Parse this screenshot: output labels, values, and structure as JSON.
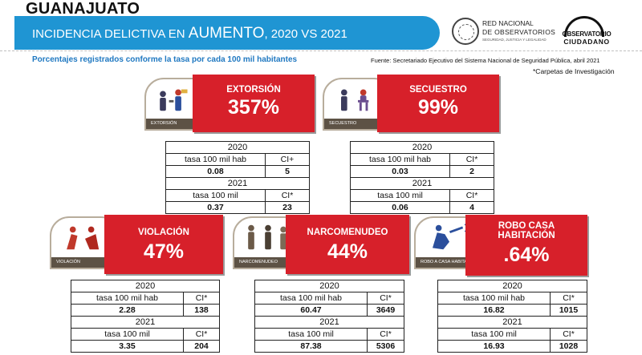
{
  "header": {
    "state": "GUANAJUATO",
    "banner_prefix": "INCIDENCIA DELICTIVA EN ",
    "banner_big": "AUMENTO",
    "banner_suffix": ", 2020 VS 2021",
    "banner_color": "#1f95d3"
  },
  "logos": {
    "red_line1": "RED NACIONAL",
    "red_line2": "DE OBSERVATORIOS",
    "red_line3": "SEGURIDAD, JUSTICIA Y LEGALIDAD",
    "obs_line1": "OBSERVATORIO",
    "obs_line2": "CIUDADANO"
  },
  "subtitle": "Porcentajes registrados conforme la tasa por cada 100 mil habitantes",
  "source": "Fuente: Secretariado Ejecutivo del Sistema Nacional de Seguridad Pública, abril 2021",
  "note": "*Carpetas de Investigación",
  "accent_red": "#d7202a",
  "crimes": [
    {
      "title": "EXTORSIÓN",
      "title2": "",
      "percent": "357%",
      "icon_label": "EXTORSIÓN",
      "icon": "extortion-icon",
      "y2020": "2020",
      "h2020_rate": "tasa 100 mil hab",
      "h2020_ci": "CI+",
      "v2020_rate": "0.08",
      "v2020_ci": "5",
      "y2021": "2021",
      "h2021_rate": "tasa 100 mil",
      "h2021_ci": "CI*",
      "v2021_rate": "0.37",
      "v2021_ci": "23"
    },
    {
      "title": "SECUESTRO",
      "title2": "",
      "percent": "99%",
      "icon_label": "SECUESTRO",
      "icon": "kidnapping-icon",
      "y2020": "2020",
      "h2020_rate": "tasa 100 mil hab",
      "h2020_ci": "CI*",
      "v2020_rate": "0.03",
      "v2020_ci": "2",
      "y2021": "2021",
      "h2021_rate": "tasa 100 mil",
      "h2021_ci": "CI*",
      "v2021_rate": "0.06",
      "v2021_ci": "4"
    },
    {
      "title": "VIOLACIÓN",
      "title2": "",
      "percent": "47%",
      "icon_label": "VIOLACIÓN",
      "icon": "rape-icon",
      "y2020": "2020",
      "h2020_rate": "tasa 100 mil hab",
      "h2020_ci": "CI*",
      "v2020_rate": "2.28",
      "v2020_ci": "138",
      "y2021": "2021",
      "h2021_rate": "tasa 100 mil",
      "h2021_ci": "CI*",
      "v2021_rate": "3.35",
      "v2021_ci": "204"
    },
    {
      "title": "NARCOMENUDEO",
      "title2": "",
      "percent": "44%",
      "icon_label": "NARCOMENUDEO",
      "icon": "drug-dealing-icon",
      "y2020": "2020",
      "h2020_rate": "tasa 100 mil hab",
      "h2020_ci": "CI*",
      "v2020_rate": "60.47",
      "v2020_ci": "3649",
      "y2021": "2021",
      "h2021_rate": "tasa 100 mil",
      "h2021_ci": "CI*",
      "v2021_rate": "87.38",
      "v2021_ci": "5306"
    },
    {
      "title": "ROBO CASA",
      "title2": "HABITACIÓN",
      "percent": ".64%",
      "icon_label": "ROBO A CASA HABITACIÓN",
      "icon": "burglary-icon",
      "y2020": "2020",
      "h2020_rate": "tasa 100 mil hab",
      "h2020_ci": "CI*",
      "v2020_rate": "16.82",
      "v2020_ci": "1015",
      "y2021": "2021",
      "h2021_rate": "tasa 100 mil",
      "h2021_ci": "CI*",
      "v2021_rate": "16.93",
      "v2021_ci": "1028"
    }
  ]
}
